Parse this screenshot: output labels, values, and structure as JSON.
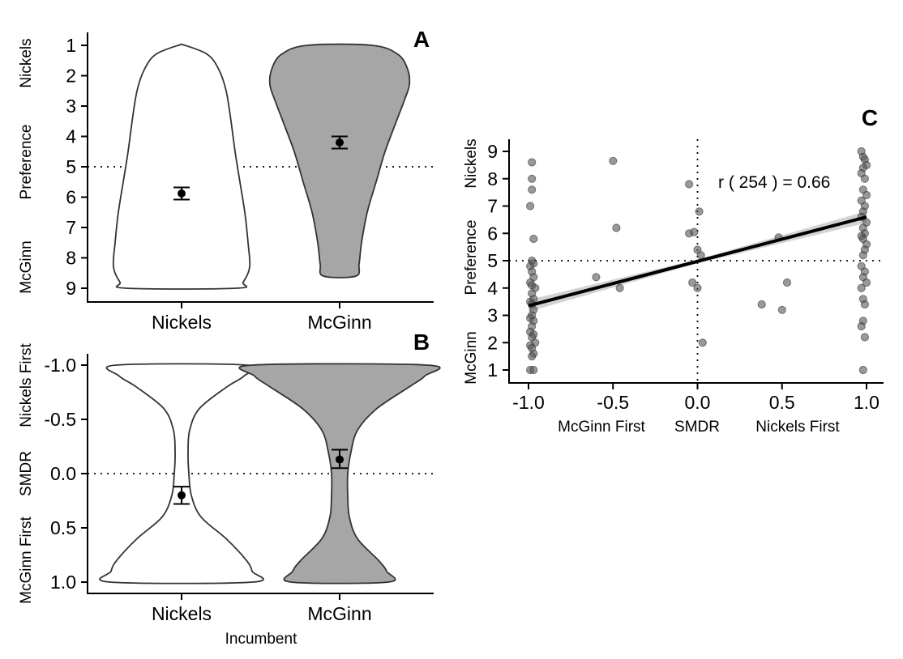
{
  "chart_data": [
    {
      "panel": "A",
      "type": "violin",
      "ylim": [
        1,
        9
      ],
      "yticks": [
        1,
        2,
        3,
        4,
        5,
        6,
        7,
        8,
        9
      ],
      "reference_line": 5,
      "ylabel_parts": [
        "McGinn",
        "Preference",
        "Nickels"
      ],
      "categories": [
        "Nickels",
        "McGinn"
      ],
      "fills": [
        "#ffffff",
        "#a6a6a6"
      ],
      "groups": [
        {
          "name": "Nickels",
          "mean": 5.88,
          "err_low": 5.68,
          "err_high": 6.08,
          "range": [
            1,
            9
          ],
          "density": [
            [
              1.0,
              0.04
            ],
            [
              1.3,
              0.32
            ],
            [
              1.8,
              0.46
            ],
            [
              2.5,
              0.55
            ],
            [
              3.5,
              0.61
            ],
            [
              4.5,
              0.66
            ],
            [
              5.5,
              0.72
            ],
            [
              6.5,
              0.78
            ],
            [
              7.5,
              0.82
            ],
            [
              8.3,
              0.84
            ],
            [
              8.8,
              0.76
            ],
            [
              9.0,
              0.68
            ]
          ]
        },
        {
          "name": "McGinn",
          "mean": 4.2,
          "err_low": 4.0,
          "err_high": 4.4,
          "range": [
            1,
            8.6
          ],
          "density": [
            [
              1.0,
              0.4
            ],
            [
              1.3,
              0.72
            ],
            [
              1.8,
              0.84
            ],
            [
              2.3,
              0.86
            ],
            [
              2.8,
              0.8
            ],
            [
              3.5,
              0.7
            ],
            [
              4.5,
              0.56
            ],
            [
              5.5,
              0.45
            ],
            [
              6.5,
              0.34
            ],
            [
              7.5,
              0.27
            ],
            [
              8.2,
              0.24
            ],
            [
              8.6,
              0.2
            ]
          ]
        }
      ]
    },
    {
      "panel": "B",
      "type": "violin",
      "ylim": [
        -1,
        1
      ],
      "yticks": [
        "-1.0",
        "-0.5",
        "0.0",
        "0.5",
        "1.0"
      ],
      "reference_line": 0,
      "ylabel_parts": [
        "McGinn First",
        "SMDR",
        "Nickels First"
      ],
      "xlabel": "Incumbent",
      "categories": [
        "Nickels",
        "McGinn"
      ],
      "fills": [
        "#ffffff",
        "#a6a6a6"
      ],
      "groups": [
        {
          "name": "Nickels",
          "mean": 0.2,
          "err_low": 0.12,
          "err_high": 0.28,
          "range": [
            -1,
            1
          ],
          "density": [
            [
              -1.0,
              0.81
            ],
            [
              -0.9,
              0.77
            ],
            [
              -0.8,
              0.56
            ],
            [
              -0.6,
              0.22
            ],
            [
              -0.4,
              0.1
            ],
            [
              -0.2,
              0.08
            ],
            [
              0.0,
              0.09
            ],
            [
              0.2,
              0.12
            ],
            [
              0.4,
              0.24
            ],
            [
              0.6,
              0.55
            ],
            [
              0.8,
              0.8
            ],
            [
              0.9,
              0.87
            ],
            [
              1.0,
              0.88
            ]
          ]
        },
        {
          "name": "McGinn",
          "mean": -0.13,
          "err_low": -0.22,
          "err_high": -0.05,
          "range": [
            -1,
            1
          ],
          "density": [
            [
              -1.0,
              1.08
            ],
            [
              -0.9,
              1.05
            ],
            [
              -0.8,
              0.86
            ],
            [
              -0.6,
              0.46
            ],
            [
              -0.4,
              0.22
            ],
            [
              -0.2,
              0.14
            ],
            [
              0.0,
              0.1
            ],
            [
              0.2,
              0.1
            ],
            [
              0.4,
              0.12
            ],
            [
              0.6,
              0.22
            ],
            [
              0.8,
              0.48
            ],
            [
              0.9,
              0.58
            ],
            [
              1.0,
              0.6
            ]
          ]
        }
      ]
    },
    {
      "panel": "C",
      "type": "scatter",
      "xlim": [
        -1.1,
        1.1
      ],
      "ylim": [
        1,
        9
      ],
      "xticks": [
        "-1.0",
        "-0.5",
        "0.0",
        "0.5",
        "1.0"
      ],
      "yticks": [
        1,
        2,
        3,
        4,
        5,
        6,
        7,
        8,
        9
      ],
      "ylabel_parts": [
        "McGinn",
        "Preference",
        "Nickels"
      ],
      "xlabel_parts": [
        "McGinn First",
        "SMDR",
        "Nickels First"
      ],
      "annotation": "r ( 254 ) = 0.66",
      "fit": {
        "x": [
          -1,
          1
        ],
        "y": [
          3.35,
          6.6
        ],
        "band_halfwidth": 0.12
      },
      "vline": 0,
      "hline": 5,
      "points": [
        [
          -0.98,
          8.6
        ],
        [
          -0.98,
          8.0
        ],
        [
          -0.98,
          7.6
        ],
        [
          -0.99,
          7.0
        ],
        [
          -0.97,
          5.8
        ],
        [
          -0.98,
          5.0
        ],
        [
          -0.97,
          4.9
        ],
        [
          -0.99,
          4.8
        ],
        [
          -0.98,
          4.6
        ],
        [
          -0.97,
          4.4
        ],
        [
          -0.99,
          4.2
        ],
        [
          -0.98,
          4.1
        ],
        [
          -0.96,
          4.0
        ],
        [
          -0.98,
          3.8
        ],
        [
          -0.97,
          3.6
        ],
        [
          -0.99,
          3.5
        ],
        [
          -0.98,
          3.4
        ],
        [
          -0.97,
          3.2
        ],
        [
          -0.98,
          3.0
        ],
        [
          -0.99,
          2.9
        ],
        [
          -0.97,
          2.8
        ],
        [
          -0.98,
          2.6
        ],
        [
          -0.99,
          2.4
        ],
        [
          -0.97,
          2.3
        ],
        [
          -0.98,
          2.2
        ],
        [
          -0.96,
          2.0
        ],
        [
          -0.99,
          1.9
        ],
        [
          -0.98,
          1.8
        ],
        [
          -0.97,
          1.6
        ],
        [
          -0.98,
          1.5
        ],
        [
          -0.99,
          1.0
        ],
        [
          -0.97,
          1.0
        ],
        [
          -0.6,
          4.4
        ],
        [
          -0.5,
          8.65
        ],
        [
          -0.48,
          6.2
        ],
        [
          -0.46,
          4.0
        ],
        [
          -0.05,
          7.8
        ],
        [
          -0.05,
          6.0
        ],
        [
          -0.02,
          6.05
        ],
        [
          0.0,
          5.4
        ],
        [
          0.01,
          6.8
        ],
        [
          0.02,
          5.2
        ],
        [
          -0.03,
          4.2
        ],
        [
          0.0,
          4.0
        ],
        [
          0.03,
          2.0
        ],
        [
          0.38,
          3.4
        ],
        [
          0.48,
          5.85
        ],
        [
          0.5,
          3.2
        ],
        [
          0.53,
          4.2
        ],
        [
          0.97,
          9.0
        ],
        [
          0.98,
          8.8
        ],
        [
          0.99,
          8.7
        ],
        [
          1.0,
          8.5
        ],
        [
          0.98,
          8.4
        ],
        [
          0.97,
          8.2
        ],
        [
          0.99,
          8.0
        ],
        [
          0.98,
          7.6
        ],
        [
          1.0,
          7.4
        ],
        [
          0.97,
          7.2
        ],
        [
          0.99,
          7.0
        ],
        [
          0.98,
          6.8
        ],
        [
          0.97,
          6.6
        ],
        [
          1.0,
          6.4
        ],
        [
          0.98,
          6.2
        ],
        [
          0.99,
          6.0
        ],
        [
          0.97,
          5.9
        ],
        [
          0.98,
          5.8
        ],
        [
          1.0,
          5.6
        ],
        [
          0.99,
          5.4
        ],
        [
          0.98,
          5.2
        ],
        [
          0.97,
          4.8
        ],
        [
          0.99,
          4.6
        ],
        [
          0.98,
          4.4
        ],
        [
          1.0,
          4.2
        ],
        [
          0.97,
          4.0
        ],
        [
          0.98,
          3.6
        ],
        [
          0.99,
          3.4
        ],
        [
          0.98,
          2.8
        ],
        [
          0.97,
          2.6
        ],
        [
          0.99,
          2.2
        ],
        [
          0.98,
          1.0
        ]
      ]
    }
  ]
}
